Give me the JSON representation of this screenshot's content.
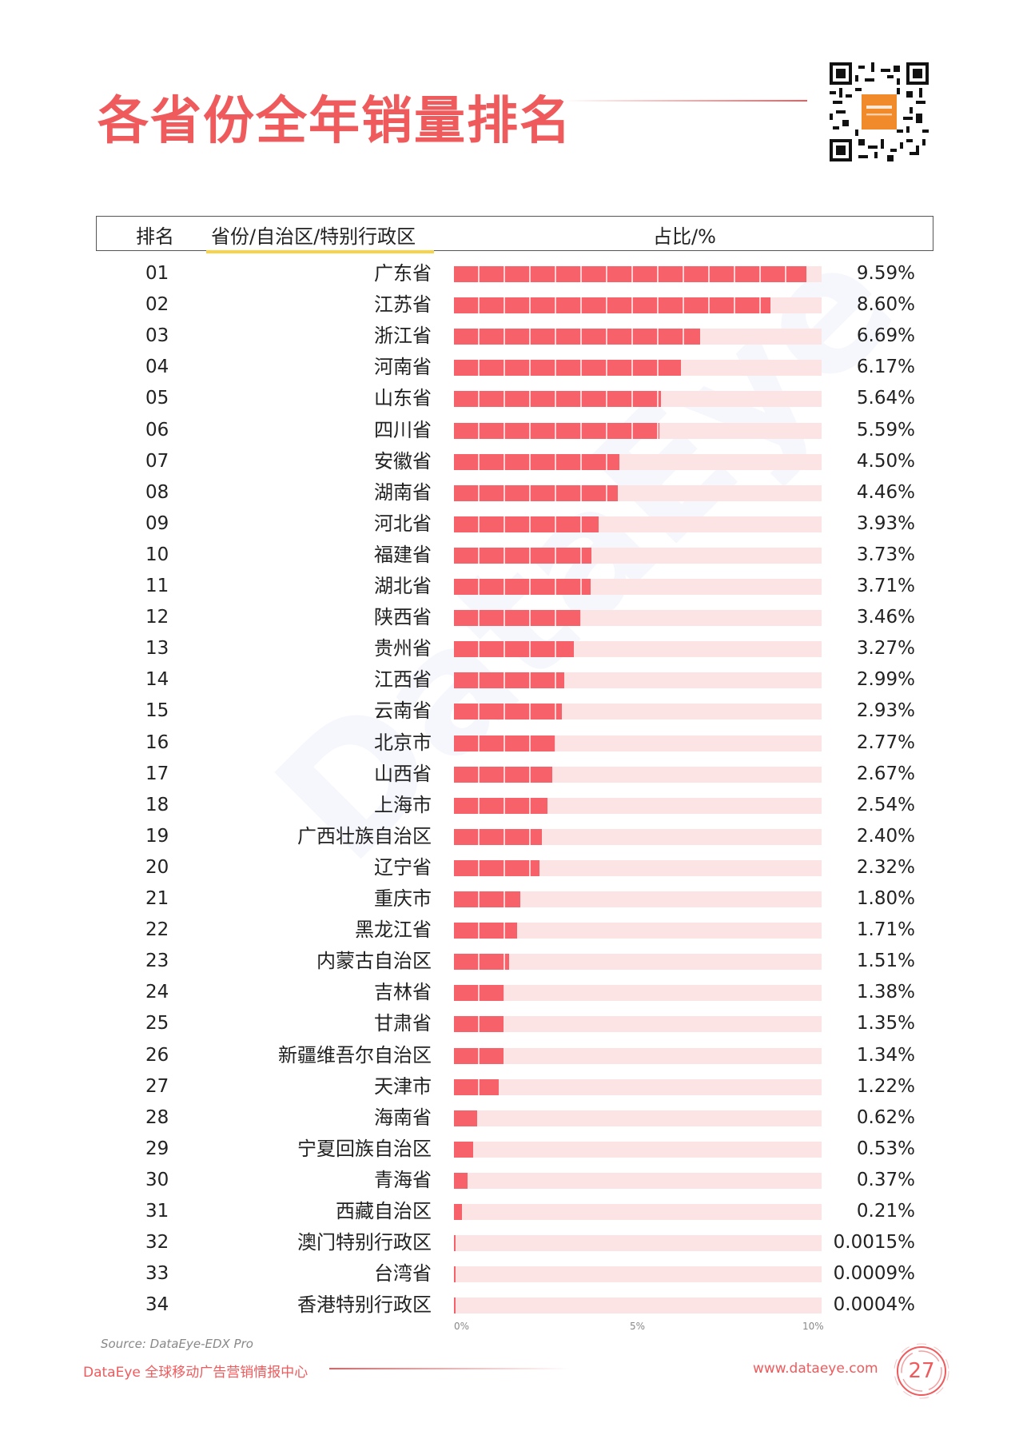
{
  "page": {
    "title": "各省份全年销量排名",
    "source": "Source: DataEye-EDX Pro",
    "footer_left": "DataEye 全球移动广告营销情报中心",
    "footer_right": "www.dataeye.com",
    "page_number": "27",
    "watermark": "DataEye",
    "accent_color": "#ef5a5c",
    "bar_color": "#f7626a",
    "track_color": "#fde4e4"
  },
  "table": {
    "col_rank": "排名",
    "col_province": "省份/自治区/特别行政区",
    "col_share": "占比/%"
  },
  "chart_data": {
    "type": "bar",
    "orientation": "horizontal",
    "xlim": [
      0,
      10
    ],
    "x_ticks": [
      "0%",
      "5%",
      "10%"
    ],
    "rows": [
      {
        "rank": "01",
        "name": "广东省",
        "value": 9.59,
        "label": "9.59%"
      },
      {
        "rank": "02",
        "name": "江苏省",
        "value": 8.6,
        "label": "8.60%"
      },
      {
        "rank": "03",
        "name": "浙江省",
        "value": 6.69,
        "label": "6.69%"
      },
      {
        "rank": "04",
        "name": "河南省",
        "value": 6.17,
        "label": "6.17%"
      },
      {
        "rank": "05",
        "name": "山东省",
        "value": 5.64,
        "label": "5.64%"
      },
      {
        "rank": "06",
        "name": "四川省",
        "value": 5.59,
        "label": "5.59%"
      },
      {
        "rank": "07",
        "name": "安徽省",
        "value": 4.5,
        "label": "4.50%"
      },
      {
        "rank": "08",
        "name": "湖南省",
        "value": 4.46,
        "label": "4.46%"
      },
      {
        "rank": "09",
        "name": "河北省",
        "value": 3.93,
        "label": "3.93%"
      },
      {
        "rank": "10",
        "name": "福建省",
        "value": 3.73,
        "label": "3.73%"
      },
      {
        "rank": "11",
        "name": "湖北省",
        "value": 3.71,
        "label": "3.71%"
      },
      {
        "rank": "12",
        "name": "陕西省",
        "value": 3.46,
        "label": "3.46%"
      },
      {
        "rank": "13",
        "name": "贵州省",
        "value": 3.27,
        "label": "3.27%"
      },
      {
        "rank": "14",
        "name": "江西省",
        "value": 2.99,
        "label": "2.99%"
      },
      {
        "rank": "15",
        "name": "云南省",
        "value": 2.93,
        "label": "2.93%"
      },
      {
        "rank": "16",
        "name": "北京市",
        "value": 2.77,
        "label": "2.77%"
      },
      {
        "rank": "17",
        "name": "山西省",
        "value": 2.67,
        "label": "2.67%"
      },
      {
        "rank": "18",
        "name": "上海市",
        "value": 2.54,
        "label": "2.54%"
      },
      {
        "rank": "19",
        "name": "广西壮族自治区",
        "value": 2.4,
        "label": "2.40%"
      },
      {
        "rank": "20",
        "name": "辽宁省",
        "value": 2.32,
        "label": "2.32%"
      },
      {
        "rank": "21",
        "name": "重庆市",
        "value": 1.8,
        "label": "1.80%"
      },
      {
        "rank": "22",
        "name": "黑龙江省",
        "value": 1.71,
        "label": "1.71%"
      },
      {
        "rank": "23",
        "name": "内蒙古自治区",
        "value": 1.51,
        "label": "1.51%"
      },
      {
        "rank": "24",
        "name": "吉林省",
        "value": 1.38,
        "label": "1.38%"
      },
      {
        "rank": "25",
        "name": "甘肃省",
        "value": 1.35,
        "label": "1.35%"
      },
      {
        "rank": "26",
        "name": "新疆维吾尔自治区",
        "value": 1.34,
        "label": "1.34%"
      },
      {
        "rank": "27",
        "name": "天津市",
        "value": 1.22,
        "label": "1.22%"
      },
      {
        "rank": "28",
        "name": "海南省",
        "value": 0.62,
        "label": "0.62%"
      },
      {
        "rank": "29",
        "name": "宁夏回族自治区",
        "value": 0.53,
        "label": "0.53%"
      },
      {
        "rank": "30",
        "name": "青海省",
        "value": 0.37,
        "label": "0.37%"
      },
      {
        "rank": "31",
        "name": "西藏自治区",
        "value": 0.21,
        "label": "0.21%"
      },
      {
        "rank": "32",
        "name": "澳门特别行政区",
        "value": 0.0015,
        "label": "0.0015%"
      },
      {
        "rank": "33",
        "name": "台湾省",
        "value": 0.0009,
        "label": "0.0009%"
      },
      {
        "rank": "34",
        "name": "香港特别行政区",
        "value": 0.0004,
        "label": "0.0004%"
      }
    ]
  }
}
